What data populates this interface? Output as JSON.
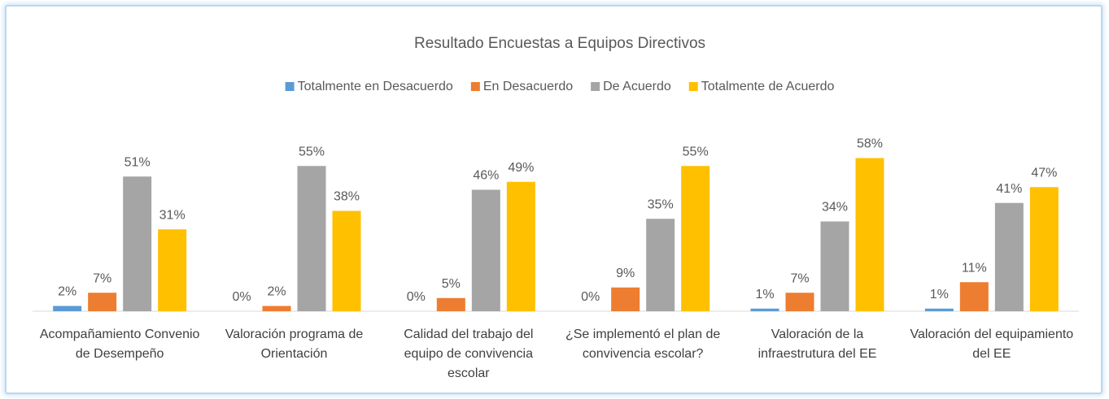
{
  "chart_data": {
    "type": "bar",
    "title": "Resultado Encuestas a Equipos Directivos",
    "categories": [
      "Acompañamiento Convenio de Desempeño",
      "Valoración programa de Orientación",
      "Calidad del trabajo del equipo de convivencia escolar",
      "¿Se implementó el plan de convivencia escolar?",
      "Valoración de la infraestrutura del EE",
      "Valoración del equipamiento del EE"
    ],
    "series": [
      {
        "name": "Totalmente en Desacuerdo",
        "color": "#5b9bd5",
        "values": [
          2,
          0,
          0,
          0,
          1,
          1
        ],
        "value_labels": [
          "2%",
          "0%",
          "0%",
          "0%",
          "1%",
          "1%"
        ]
      },
      {
        "name": "En Desacuerdo",
        "color": "#ed7d31",
        "values": [
          7,
          2,
          5,
          9,
          7,
          11
        ],
        "value_labels": [
          "7%",
          "2%",
          "5%",
          "9%",
          "7%",
          "11%"
        ]
      },
      {
        "name": "De Acuerdo",
        "color": "#a5a5a5",
        "values": [
          51,
          55,
          46,
          35,
          34,
          41
        ],
        "value_labels": [
          "51%",
          "55%",
          "46%",
          "35%",
          "34%",
          "41%"
        ]
      },
      {
        "name": "Totalmente de Acuerdo",
        "color": "#ffc000",
        "values": [
          31,
          38,
          49,
          55,
          58,
          47
        ],
        "value_labels": [
          "31%",
          "38%",
          "49%",
          "55%",
          "58%",
          "47%"
        ]
      }
    ],
    "legend": "top"
  }
}
